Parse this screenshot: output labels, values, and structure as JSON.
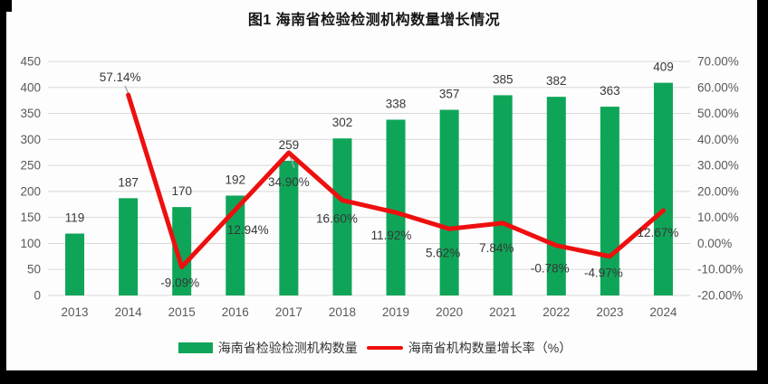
{
  "title": "图1 海南省检验检测机构数量增长情况",
  "legend": {
    "bar_label": "海南省检验检测机构数量",
    "line_label": "海南省机构数量增长率（%）"
  },
  "colors": {
    "bar": "#0fa558",
    "line": "#ee0f0f",
    "grid": "#d9d9d9",
    "axis_text": "#595959",
    "data_label": "#373737",
    "leader": "#a6a6a6",
    "frame": "#000000",
    "background": "#fdfdfd"
  },
  "chart_data": {
    "type": "bar",
    "subtype": "combo-bar-line",
    "title": "图1 海南省检验检测机构数量增长情况",
    "categories": [
      "2013",
      "2014",
      "2015",
      "2016",
      "2017",
      "2018",
      "2019",
      "2020",
      "2021",
      "2022",
      "2023",
      "2024"
    ],
    "series": [
      {
        "name": "海南省检验检测机构数量",
        "type": "bar",
        "axis": "left",
        "color": "#0fa558",
        "values": [
          119,
          187,
          170,
          192,
          259,
          302,
          338,
          357,
          385,
          382,
          363,
          409
        ],
        "labels": [
          "119",
          "187",
          "170",
          "192",
          "259",
          "302",
          "338",
          "357",
          "385",
          "382",
          "363",
          "409"
        ]
      },
      {
        "name": "海南省机构数量增长率（%）",
        "type": "line",
        "axis": "right",
        "color": "#ee0f0f",
        "values": [
          null,
          57.14,
          -9.09,
          12.94,
          34.9,
          16.6,
          11.92,
          5.62,
          7.84,
          -0.78,
          -4.97,
          12.67
        ],
        "labels": [
          null,
          "57.14%",
          "-9.09%",
          "12.94%",
          "34.90%",
          "16.60%",
          "11.92%",
          "5.62%",
          "7.84%",
          "-0.78%",
          "-4.97%",
          "12.67%"
        ]
      }
    ],
    "left_axis": {
      "min": 0,
      "max": 450,
      "step": 50,
      "ticks": [
        "450",
        "400",
        "350",
        "300",
        "250",
        "200",
        "150",
        "100",
        "50",
        "0"
      ]
    },
    "right_axis": {
      "min": -20,
      "max": 70,
      "step": 10,
      "ticks": [
        "70.00%",
        "60.00%",
        "50.00%",
        "40.00%",
        "30.00%",
        "20.00%",
        "10.00%",
        "0.00%",
        "-10.00%",
        "-20.00%"
      ]
    },
    "grid": true,
    "legend_position": "bottom"
  }
}
